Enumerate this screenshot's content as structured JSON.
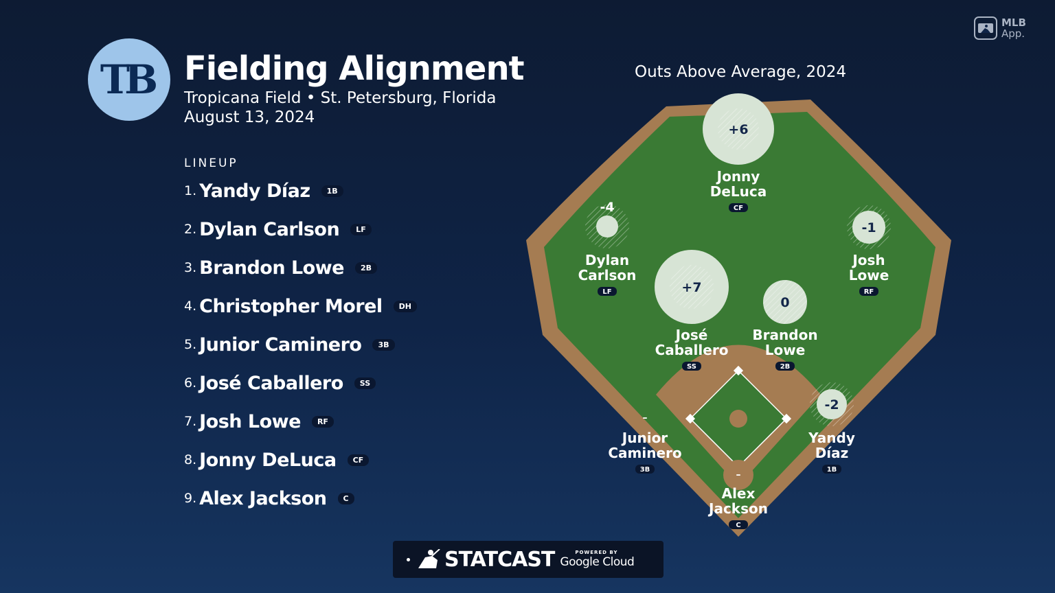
{
  "header": {
    "team_logo_text": "TB",
    "title": "Fielding Alignment",
    "subtitle": "Tropicana Field • St. Petersburg, Florida",
    "date": "August 13, 2024"
  },
  "branding": {
    "mlb_app_line1": "MLB",
    "mlb_app_line2": "App.",
    "statcast": "STATCAST",
    "powered_by": "POWERED BY",
    "google_cloud": "Google Cloud"
  },
  "lineup": {
    "heading": "LINEUP",
    "players": [
      {
        "num": "1.",
        "name": "Yandy Díaz",
        "pos": "1B"
      },
      {
        "num": "2.",
        "name": "Dylan Carlson",
        "pos": "LF"
      },
      {
        "num": "3.",
        "name": "Brandon Lowe",
        "pos": "2B"
      },
      {
        "num": "4.",
        "name": "Christopher Morel",
        "pos": "DH"
      },
      {
        "num": "5.",
        "name": "Junior Caminero",
        "pos": "3B"
      },
      {
        "num": "6.",
        "name": "José Caballero",
        "pos": "SS"
      },
      {
        "num": "7.",
        "name": "Josh Lowe",
        "pos": "RF"
      },
      {
        "num": "8.",
        "name": "Jonny DeLuca",
        "pos": "CF"
      },
      {
        "num": "9.",
        "name": "Alex Jackson",
        "pos": "C"
      }
    ]
  },
  "field": {
    "title": "Outs Above Average, 2024",
    "colors": {
      "grass": "#3a7a34",
      "dirt": "#a57c52",
      "background": "#0f2447"
    },
    "fielders": [
      {
        "line1": "Jonny",
        "line2": "DeLuca",
        "pos": "CF",
        "oaa": "+6"
      },
      {
        "line1": "Dylan",
        "line2": "Carlson",
        "pos": "LF",
        "oaa": "-4"
      },
      {
        "line1": "Josh",
        "line2": "Lowe",
        "pos": "RF",
        "oaa": "-1"
      },
      {
        "line1": "José",
        "line2": "Caballero",
        "pos": "SS",
        "oaa": "+7"
      },
      {
        "line1": "Brandon",
        "line2": "Lowe",
        "pos": "2B",
        "oaa": "0"
      },
      {
        "line1": "Junior",
        "line2": "Caminero",
        "pos": "3B",
        "oaa": "–"
      },
      {
        "line1": "Yandy",
        "line2": "Díaz",
        "pos": "1B",
        "oaa": "-2"
      },
      {
        "line1": "Alex",
        "line2": "Jackson",
        "pos": "C",
        "oaa": "–"
      }
    ]
  }
}
